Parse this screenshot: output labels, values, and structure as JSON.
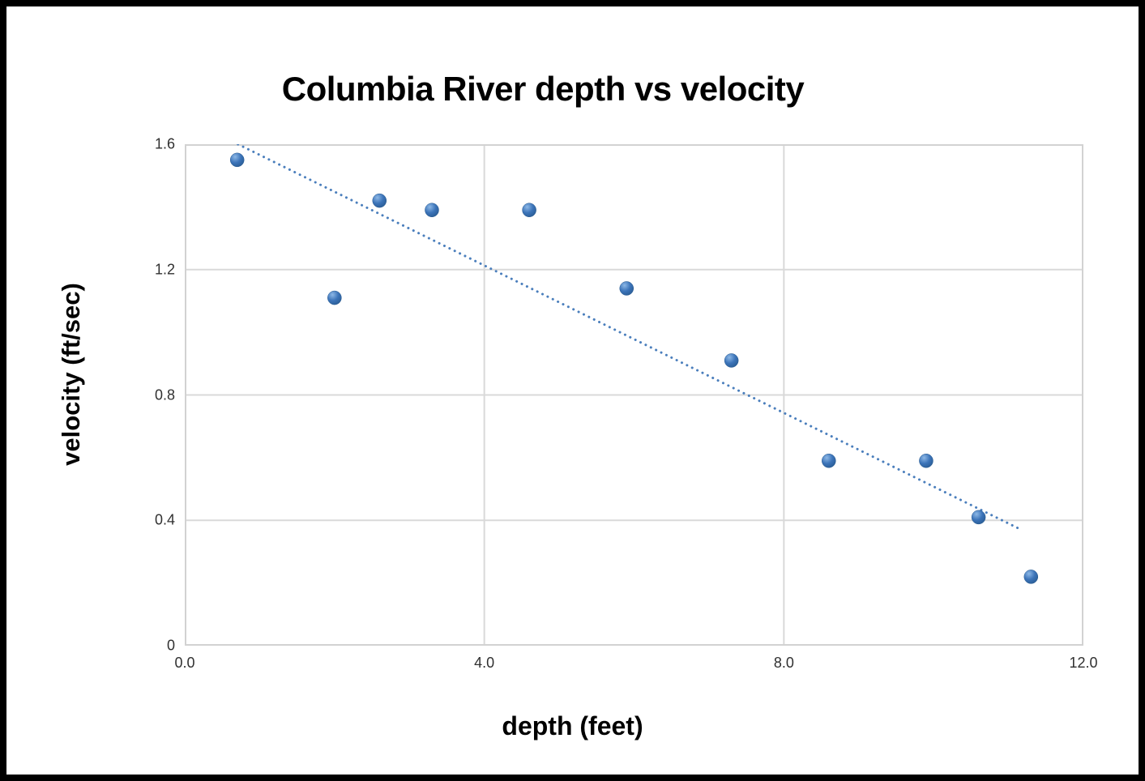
{
  "chart_data": {
    "type": "scatter",
    "title": "Columbia River depth vs velocity",
    "xlabel": "depth (feet)",
    "ylabel": "velocity (ft/sec)",
    "xlim": [
      0.0,
      12.0
    ],
    "ylim": [
      0.0,
      1.6
    ],
    "x_ticks": [
      "0.0",
      "4.0",
      "8.0",
      "12.0"
    ],
    "x_tick_values": [
      0.0,
      4.0,
      8.0,
      12.0
    ],
    "y_ticks": [
      "0",
      "0.4",
      "0.8",
      "1.2",
      "1.6"
    ],
    "y_tick_values": [
      0.0,
      0.4,
      0.8,
      1.2,
      1.6
    ],
    "grid": true,
    "legend": "none",
    "series": [
      {
        "name": "depth vs velocity",
        "points": [
          {
            "x": 0.7,
            "y": 1.55
          },
          {
            "x": 2.0,
            "y": 1.11
          },
          {
            "x": 2.6,
            "y": 1.42
          },
          {
            "x": 3.3,
            "y": 1.39
          },
          {
            "x": 4.6,
            "y": 1.39
          },
          {
            "x": 5.9,
            "y": 1.14
          },
          {
            "x": 7.3,
            "y": 0.91
          },
          {
            "x": 8.6,
            "y": 0.59
          },
          {
            "x": 9.9,
            "y": 0.59
          },
          {
            "x": 10.6,
            "y": 0.41
          },
          {
            "x": 11.3,
            "y": 0.22
          }
        ]
      }
    ],
    "trendline": {
      "style": "dotted",
      "x_start": 0.71,
      "y_start": 1.6,
      "x_end": 11.17,
      "y_end": 0.37
    },
    "colors": {
      "marker": "#3c74b9",
      "marker_highlight": "#8db8e6",
      "marker_edge": "#27598f",
      "trendline": "#4a7ebc",
      "gridline": "#d9d9d9",
      "plot_border": "#d2d2d2",
      "tick_label": "#303030",
      "title": "#000000",
      "frame": "#000000",
      "background": "#ffffff"
    }
  }
}
